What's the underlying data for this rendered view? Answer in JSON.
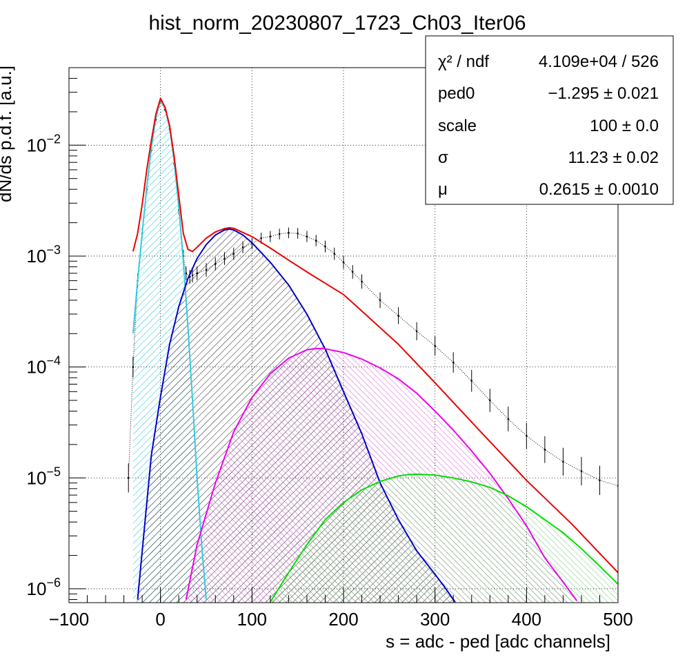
{
  "chart_data": {
    "type": "line",
    "title": "hist_norm_20230807_1723_Ch03_Iter06",
    "xlabel": "s = adc - ped [adc channels]",
    "ylabel": "dN/ds p.d.f. [a.u.]",
    "x_range": [
      -100,
      500
    ],
    "y_range": [
      7.5e-07,
      0.05
    ],
    "log_y": true,
    "grid": true,
    "x_ticks": [
      "−100",
      "0",
      "100",
      "200",
      "300",
      "400",
      "500"
    ],
    "x_tick_values": [
      -100,
      0,
      100,
      200,
      300,
      400,
      500
    ],
    "y_ticks": [
      {
        "base": "10",
        "exp": "−6",
        "value": 1e-06
      },
      {
        "base": "10",
        "exp": "−5",
        "value": 1e-05
      },
      {
        "base": "10",
        "exp": "−4",
        "value": 0.0001
      },
      {
        "base": "10",
        "exp": "−3",
        "value": 0.001
      },
      {
        "base": "10",
        "exp": "−2",
        "value": 0.01
      }
    ],
    "stats": [
      {
        "label": "χ² / ndf",
        "value": "4.109e+04 / 526"
      },
      {
        "label": "ped0",
        "value": "−1.295 ± 0.021"
      },
      {
        "label": "scale",
        "value": "100 ± 0.0"
      },
      {
        "label": "σ",
        "value": "11.23 ± 0.02"
      },
      {
        "label": "μ",
        "value": "0.2615 ± 0.0010"
      }
    ],
    "series": [
      {
        "color": "#33ccdd",
        "fill": true,
        "x": [
          -30,
          -25,
          -20,
          -15,
          -10,
          -5,
          0,
          5,
          10,
          15,
          20,
          25,
          30,
          35,
          40,
          45,
          50
        ],
        "y": [
          0.0002,
          0.0006,
          0.0016,
          0.0042,
          0.0095,
          0.018,
          0.026,
          0.022,
          0.0145,
          0.0072,
          0.0028,
          0.0009,
          0.00023,
          5e-05,
          1e-05,
          2.5e-06,
          8e-07
        ]
      },
      {
        "color": "#0000cc",
        "fill": true,
        "x": [
          -25,
          -10,
          0,
          10,
          20,
          30,
          40,
          50,
          60,
          70,
          75,
          80,
          90,
          100,
          120,
          140,
          160,
          180,
          200,
          220,
          240,
          260,
          280,
          300,
          310,
          322
        ],
        "y": [
          8e-07,
          1.6e-05,
          5.4e-05,
          0.00016,
          0.00035,
          0.00063,
          0.00095,
          0.00127,
          0.00155,
          0.00172,
          0.00175,
          0.00172,
          0.00155,
          0.00132,
          0.00088,
          0.00055,
          0.0003,
          0.000145,
          6e-05,
          2.5e-05,
          9e-06,
          4.2e-06,
          2.2e-06,
          1.35e-06,
          1.05e-06,
          7.6e-07
        ]
      },
      {
        "color": "#ee00ee",
        "fill": true,
        "x": [
          28,
          40,
          60,
          80,
          100,
          120,
          140,
          160,
          170,
          180,
          200,
          220,
          240,
          260,
          280,
          300,
          320,
          340,
          360,
          380,
          400,
          420,
          440,
          455
        ],
        "y": [
          8e-07,
          2.5e-06,
          9e-06,
          2.6e-05,
          5.3e-05,
          8.7e-05,
          0.00012,
          0.000143,
          0.000147,
          0.000146,
          0.000135,
          0.000118,
          9.8e-05,
          7.8e-05,
          5.8e-05,
          4e-05,
          2.7e-05,
          1.75e-05,
          1.1e-05,
          6.5e-06,
          3.7e-06,
          1.9e-06,
          1.15e-06,
          7.8e-07
        ]
      },
      {
        "color": "#00dd00",
        "fill": true,
        "x": [
          120,
          140,
          160,
          180,
          200,
          220,
          240,
          260,
          270,
          280,
          300,
          320,
          340,
          360,
          380,
          400,
          420,
          440,
          460,
          480,
          500
        ],
        "y": [
          7.6e-07,
          1.4e-06,
          2.5e-06,
          4.2e-06,
          6e-06,
          7.8e-06,
          9.3e-06,
          1.04e-05,
          1.07e-05,
          1.08e-05,
          1.06e-05,
          1e-05,
          9.2e-06,
          8.2e-06,
          6.9e-06,
          5.5e-06,
          4.2e-06,
          3.2e-06,
          2.3e-06,
          1.6e-06,
          1.1e-06
        ]
      },
      {
        "color": "#ee0000",
        "fill": false,
        "x": [
          -30,
          -25,
          -20,
          -15,
          -10,
          -5,
          0,
          5,
          10,
          15,
          20,
          25,
          30,
          35,
          40,
          50,
          60,
          70,
          75,
          80,
          100,
          120,
          140,
          160,
          200,
          220,
          260,
          300,
          350,
          400,
          450,
          500
        ],
        "y": [
          0.0011,
          0.0016,
          0.0029,
          0.006,
          0.011,
          0.019,
          0.0265,
          0.022,
          0.015,
          0.0078,
          0.0035,
          0.0016,
          0.00115,
          0.0011,
          0.0012,
          0.00145,
          0.00165,
          0.00177,
          0.0018,
          0.00178,
          0.0015,
          0.00118,
          0.00092,
          0.00072,
          0.00045,
          0.00032,
          0.00016,
          7.2e-05,
          2.6e-05,
          9.5e-06,
          3.8e-06,
          1.4e-06
        ]
      },
      {
        "color": "#000000",
        "fill": false,
        "points": true,
        "x": [
          -35,
          -30,
          -25,
          -20,
          -15,
          -10,
          -5,
          0,
          5,
          10,
          15,
          20,
          25,
          28,
          32,
          35,
          40,
          50,
          60,
          70,
          80,
          90,
          100,
          110,
          120,
          130,
          140,
          150,
          160,
          170,
          180,
          190,
          200,
          210,
          220,
          240,
          260,
          280,
          300,
          320,
          340,
          360,
          380,
          400,
          420,
          440,
          460,
          480,
          500
        ],
        "y": [
          1e-05,
          0.0001,
          0.0006,
          0.0016,
          0.004,
          0.009,
          0.017,
          0.025,
          0.021,
          0.014,
          0.0068,
          0.0026,
          0.001,
          0.0007,
          0.00065,
          0.00067,
          0.0007,
          0.00075,
          0.00085,
          0.00095,
          0.00105,
          0.0012,
          0.0013,
          0.00145,
          0.0015,
          0.00158,
          0.00162,
          0.0016,
          0.0015,
          0.00138,
          0.00122,
          0.00105,
          0.00088,
          0.00072,
          0.00059,
          0.0004,
          0.00029,
          0.00021,
          0.000155,
          0.00011,
          7.5e-05,
          5e-05,
          3.4e-05,
          2.4e-05,
          1.8e-05,
          1.4e-05,
          1.15e-05,
          9.5e-06,
          8.5e-06
        ]
      }
    ]
  }
}
